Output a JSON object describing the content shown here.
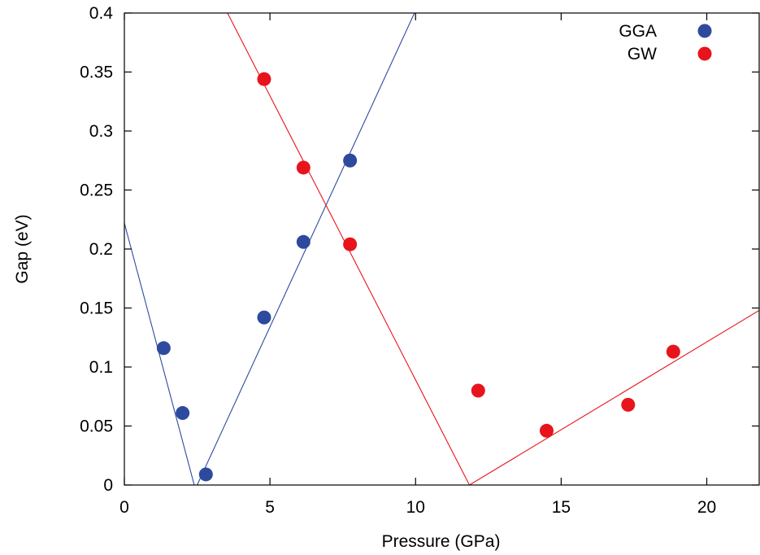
{
  "chart_data": {
    "type": "scatter",
    "title": "",
    "xlabel": "Pressure (GPa)",
    "ylabel": "Gap (eV)",
    "xlim": [
      0,
      21.8
    ],
    "ylim": [
      0,
      0.4
    ],
    "x_ticks": [
      0,
      5,
      10,
      15,
      20
    ],
    "x_tick_labels": [
      "0",
      "5",
      "10",
      "15",
      "20"
    ],
    "y_ticks": [
      0,
      0.05,
      0.1,
      0.15,
      0.2,
      0.25,
      0.3,
      0.35,
      0.4
    ],
    "y_tick_labels": [
      "0",
      "0.05",
      "0.1",
      "0.15",
      "0.2",
      "0.25",
      "0.3",
      "0.35",
      "0.4"
    ],
    "grid": false,
    "legend_position": "top-right",
    "series": [
      {
        "name": "GGA",
        "color": "#2e4a9e",
        "points": [
          {
            "x": 1.35,
            "y": 0.116
          },
          {
            "x": 2.0,
            "y": 0.061
          },
          {
            "x": 2.8,
            "y": 0.009
          },
          {
            "x": 4.8,
            "y": 0.142
          },
          {
            "x": 6.15,
            "y": 0.206
          },
          {
            "x": 7.75,
            "y": 0.275
          }
        ],
        "fit_lines": [
          {
            "x1": 0,
            "y1": 0.222,
            "x2": 2.4,
            "y2": 0
          },
          {
            "x1": 2.5,
            "y1": 0,
            "x2": 10.0,
            "y2": 0.402
          }
        ]
      },
      {
        "name": "GW",
        "color": "#e8141c",
        "points": [
          {
            "x": 4.8,
            "y": 0.344
          },
          {
            "x": 6.15,
            "y": 0.269
          },
          {
            "x": 7.75,
            "y": 0.204
          },
          {
            "x": 12.15,
            "y": 0.08
          },
          {
            "x": 14.5,
            "y": 0.046
          },
          {
            "x": 17.3,
            "y": 0.068
          },
          {
            "x": 18.85,
            "y": 0.113
          }
        ],
        "fit_lines": [
          {
            "x1": 3.5,
            "y1": 0.402,
            "x2": 11.85,
            "y2": 0
          },
          {
            "x1": 11.85,
            "y1": 0,
            "x2": 21.8,
            "y2": 0.148
          }
        ]
      }
    ]
  }
}
